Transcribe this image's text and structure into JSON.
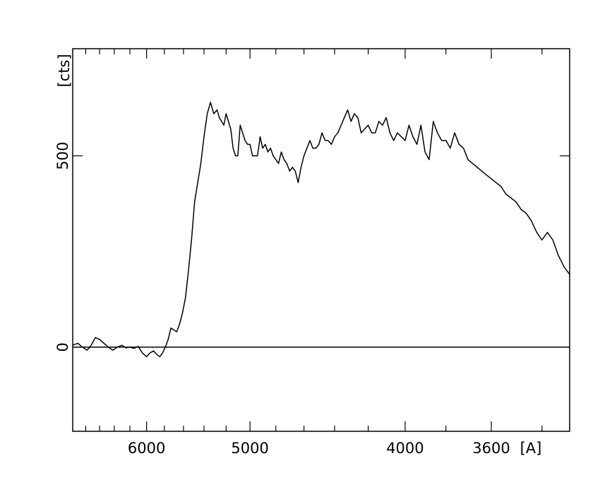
{
  "chart_data": {
    "type": "line",
    "xlabel": "[A]",
    "ylabel": "[cts]",
    "x_scale": "reciprocal",
    "xlim": [
      7000,
      3300
    ],
    "ylim": [
      -220,
      780
    ],
    "grid": false,
    "legend": "none",
    "line_color": "#000000",
    "x_major_ticks": [
      6000,
      5000,
      4000,
      3600
    ],
    "x_major_tick_labels": [
      "6000",
      "5000",
      "4000",
      "3600"
    ],
    "x_minor_ticks": [
      6800,
      6600,
      6400,
      6200,
      5800,
      5600,
      5400,
      5200,
      4800,
      4600,
      4400,
      4200,
      3800,
      3400
    ],
    "y_major_ticks": [
      0,
      500
    ],
    "y_major_tick_labels": [
      "0",
      "500"
    ],
    "zero_line": 0,
    "series": [
      {
        "x": [
          7000,
          6920,
          6850,
          6780,
          6720,
          6660,
          6600,
          6540,
          6480,
          6420,
          6360,
          6300,
          6250,
          6200,
          6150,
          6100,
          6050,
          6000,
          5960,
          5920,
          5880,
          5850,
          5820,
          5790,
          5760,
          5730,
          5700,
          5670,
          5640,
          5610,
          5580,
          5550,
          5520,
          5490,
          5460,
          5430,
          5400,
          5370,
          5340,
          5310,
          5280,
          5260,
          5240,
          5220,
          5200,
          5180,
          5160,
          5140,
          5120,
          5100,
          5080,
          5060,
          5040,
          5020,
          5000,
          4980,
          4960,
          4940,
          4920,
          4900,
          4880,
          4860,
          4840,
          4820,
          4800,
          4780,
          4760,
          4740,
          4720,
          4700,
          4680,
          4660,
          4640,
          4620,
          4600,
          4580,
          4560,
          4540,
          4520,
          4500,
          4480,
          4460,
          4440,
          4420,
          4400,
          4380,
          4360,
          4340,
          4320,
          4300,
          4280,
          4260,
          4240,
          4220,
          4200,
          4180,
          4160,
          4140,
          4120,
          4100,
          4080,
          4060,
          4040,
          4020,
          4000,
          3980,
          3960,
          3940,
          3920,
          3900,
          3880,
          3860,
          3840,
          3820,
          3800,
          3780,
          3760,
          3740,
          3720,
          3700,
          3680,
          3660,
          3640,
          3620,
          3600,
          3580,
          3560,
          3540,
          3520,
          3500,
          3480,
          3460,
          3440,
          3420,
          3400,
          3380,
          3360,
          3340,
          3320,
          3300
        ],
        "y": [
          5,
          10,
          0,
          -8,
          5,
          25,
          20,
          10,
          0,
          -8,
          0,
          5,
          -2,
          0,
          -3,
          2,
          -15,
          -25,
          -15,
          -10,
          -20,
          -25,
          -15,
          0,
          20,
          50,
          45,
          40,
          60,
          90,
          130,
          200,
          280,
          380,
          430,
          480,
          550,
          610,
          640,
          610,
          620,
          600,
          590,
          580,
          610,
          590,
          570,
          520,
          500,
          500,
          580,
          560,
          540,
          530,
          530,
          500,
          500,
          500,
          550,
          520,
          530,
          510,
          520,
          500,
          490,
          480,
          510,
          490,
          480,
          460,
          470,
          460,
          430,
          470,
          500,
          520,
          540,
          520,
          520,
          530,
          560,
          540,
          540,
          530,
          550,
          560,
          580,
          600,
          620,
          590,
          610,
          600,
          560,
          570,
          580,
          560,
          560,
          590,
          580,
          600,
          560,
          540,
          560,
          550,
          540,
          580,
          550,
          530,
          580,
          510,
          490,
          590,
          560,
          540,
          540,
          520,
          560,
          530,
          520,
          490,
          480,
          470,
          460,
          450,
          440,
          430,
          420,
          400,
          390,
          380,
          360,
          350,
          330,
          300,
          280,
          300,
          280,
          240,
          210,
          190
        ],
        "x_estimate_note_removed": null
      }
    ]
  }
}
